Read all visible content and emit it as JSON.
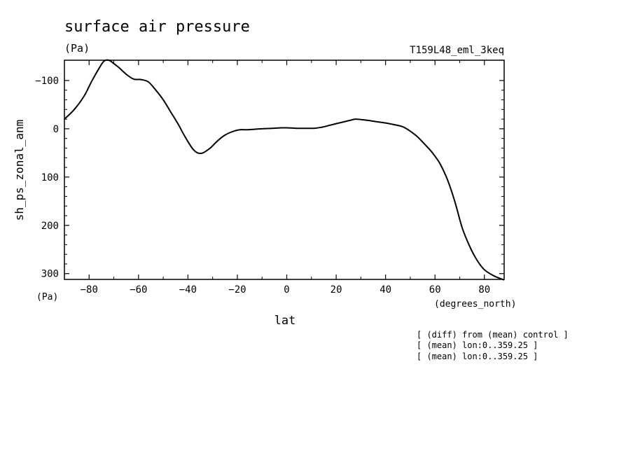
{
  "chart_data": {
    "type": "line",
    "title": "surface air pressure",
    "units_top": "(Pa)",
    "experiment": "T159L48_eml_3keq",
    "ylabel": "sh_ps_zonal_anm",
    "y_units": "(Pa)",
    "xlabel": "lat",
    "x_units": "(degrees_north)",
    "xlim": [
      -90,
      88
    ],
    "ylim": [
      312,
      -142
    ],
    "y_reversed": true,
    "x_ticks": [
      -80,
      -60,
      -40,
      -20,
      0,
      20,
      40,
      60,
      80
    ],
    "y_ticks": [
      -100,
      0,
      100,
      200,
      300
    ],
    "grid": false,
    "series": [
      {
        "x": [
          -90,
          -86,
          -82,
          -79,
          -76,
          -74,
          -72,
          -70,
          -68,
          -65,
          -62,
          -59,
          -56,
          -53,
          -50,
          -47,
          -44,
          -41,
          -38,
          -36,
          -34,
          -31,
          -28,
          -25,
          -22,
          -19,
          -16,
          -13,
          -10,
          -6,
          -2,
          0,
          4,
          8,
          11,
          14,
          18,
          22,
          26,
          28,
          32,
          36,
          40,
          44,
          47,
          50,
          53,
          56,
          59,
          62,
          65,
          68,
          71,
          74,
          77,
          80,
          84,
          88
        ],
        "y": [
          -20,
          -40,
          -68,
          -98,
          -125,
          -140,
          -142,
          -135,
          -127,
          -113,
          -103,
          -102,
          -97,
          -80,
          -60,
          -35,
          -10,
          18,
          42,
          50,
          50,
          40,
          25,
          13,
          6,
          2,
          2,
          1,
          0,
          -1,
          -2,
          -2,
          -1,
          -1,
          -1,
          -3,
          -8,
          -13,
          -18,
          -20,
          -18,
          -15,
          -12,
          -8,
          -4,
          5,
          17,
          33,
          50,
          72,
          105,
          150,
          205,
          243,
          272,
          292,
          305,
          313
        ]
      }
    ],
    "annotations": [
      "[ (diff) from (mean) control ]",
      "[ (mean) lon:0..359.25 ]",
      "[ (mean) lon:0..359.25 ]"
    ]
  }
}
